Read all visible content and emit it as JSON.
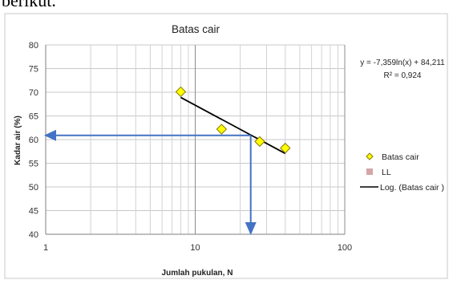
{
  "top_text": "berikut.",
  "chart_data": {
    "type": "scatter",
    "title": "Batas cair",
    "xlabel": "Jumlah pukulan, N",
    "ylabel": "Kadar air (%)",
    "x_scale": "log",
    "xlim": [
      1,
      100
    ],
    "ylim": [
      40,
      80
    ],
    "x_ticks": [
      1,
      10,
      100
    ],
    "x_tick_labels": [
      "1",
      "10",
      "100"
    ],
    "y_ticks": [
      40,
      45,
      50,
      55,
      60,
      65,
      70,
      75,
      80
    ],
    "y_tick_labels": [
      "40",
      "45",
      "50",
      "55",
      "60",
      "65",
      "70",
      "75",
      "80"
    ],
    "grid": true,
    "series": [
      {
        "name": "Batas cair",
        "marker": "diamond",
        "color": "#ffff00",
        "x": [
          8,
          15,
          27,
          40
        ],
        "y": [
          70.1,
          62.2,
          59.6,
          58.2
        ]
      },
      {
        "name": "LL",
        "marker": "square",
        "color": "#d4a6a6",
        "x": [],
        "y": []
      }
    ],
    "trendline": {
      "name": "Log. (Batas cair )",
      "type": "log",
      "a": -7.359,
      "b": 84.211,
      "x_range": [
        8,
        40
      ],
      "color": "#000000"
    },
    "equation": "y = -7,359ln(x) + 84,211",
    "r_squared": "R² = 0,924",
    "legend_position": "right",
    "legend": [
      "Batas cair",
      "LL",
      "Log. (Batas cair )"
    ],
    "annotations": {
      "color": "#4472c4",
      "n_value": 23.5,
      "moisture_value": 60.9
    }
  }
}
